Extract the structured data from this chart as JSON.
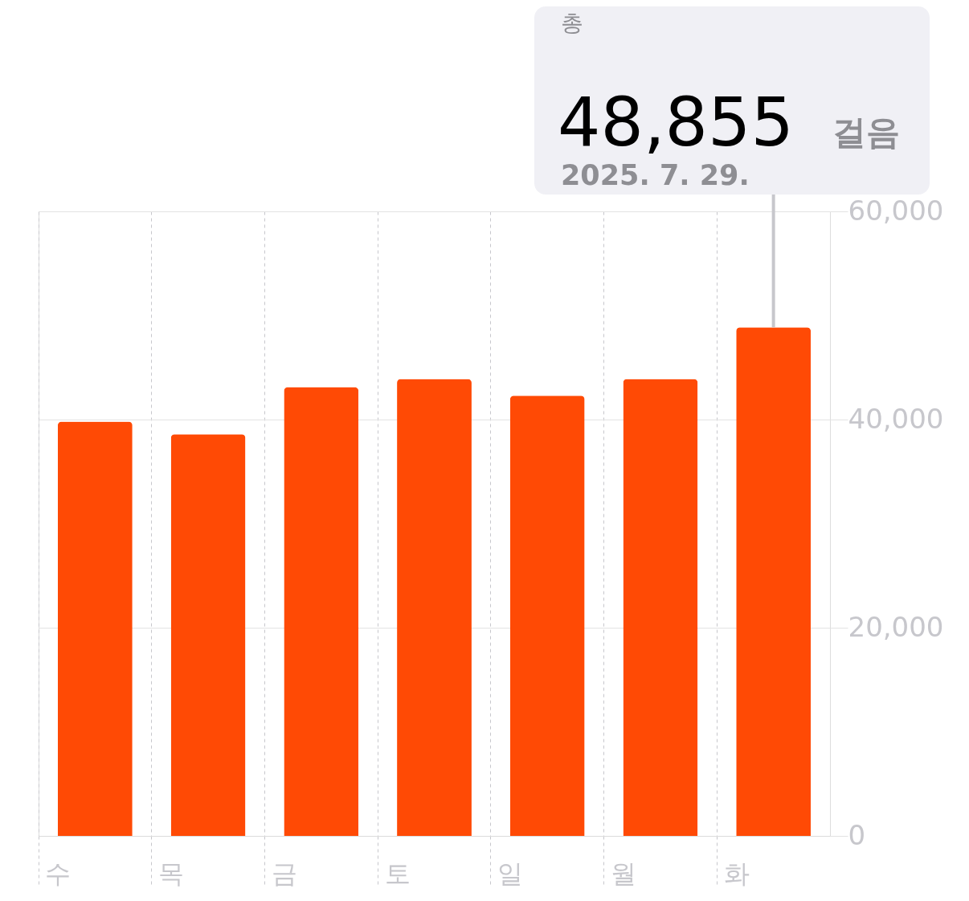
{
  "chart_data": {
    "type": "bar",
    "categories": [
      "수",
      "목",
      "금",
      "토",
      "일",
      "월",
      "화"
    ],
    "values": [
      39800,
      38600,
      43100,
      43900,
      42300,
      43900,
      48855
    ],
    "color": "#ff4a05",
    "ylim": [
      0,
      60000
    ],
    "yticks": [
      0,
      {
        "value": 20000,
        "label": "20,000"
      },
      {
        "value": 40000,
        "label": "40,000"
      },
      {
        "value": 60000,
        "label": "60,000"
      }
    ],
    "grid": true,
    "annotations": [
      "총",
      {
        "text": "48,855",
        "x": "화",
        "y": 48855
      },
      "걸음",
      "2025. 7. 29."
    ]
  }
}
